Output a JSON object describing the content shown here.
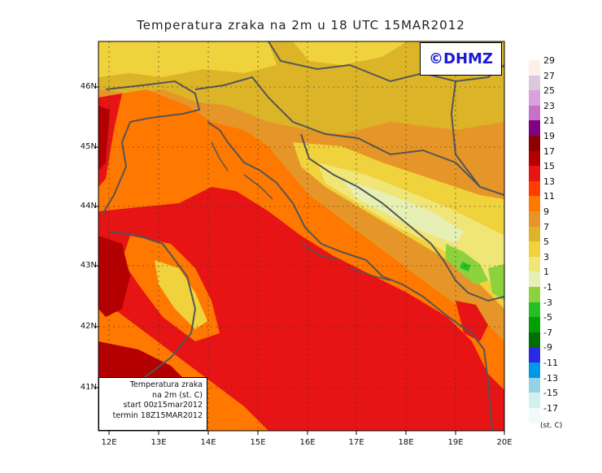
{
  "title": "Temperatura zraka na 2m u 18 UTC 15MAR2012",
  "logo": "©DHMZ",
  "lat_labels": [
    "46N",
    "45N",
    "44N",
    "43N",
    "42N",
    "41N"
  ],
  "lon_labels": [
    "12E",
    "13E",
    "14E",
    "15E",
    "16E",
    "17E",
    "18E",
    "19E",
    "20E"
  ],
  "info": {
    "line1": "Temperatura zraka",
    "line2": "na 2m (st. C)",
    "line3": "start 00z15mar2012",
    "line4": "termin 18Z15MAR2012"
  },
  "legend": {
    "levels": [
      "29",
      "27",
      "25",
      "23",
      "21",
      "19",
      "17",
      "15",
      "13",
      "11",
      "9",
      "7",
      "5",
      "3",
      "1",
      "-1",
      "-3",
      "-5",
      "-7",
      "-9",
      "-11",
      "-13",
      "-15",
      "-17"
    ],
    "colors": [
      "#fdf0e6",
      "#dcc8dc",
      "#dca0dc",
      "#c870c8",
      "#820082",
      "#8c0000",
      "#b40000",
      "#e61414",
      "#ff3c00",
      "#ff7800",
      "#e69628",
      "#dcb428",
      "#f0d23c",
      "#f0e678",
      "#e6f0b4",
      "#8cd23c",
      "#28be28",
      "#00a000",
      "#006e00",
      "#2828e6",
      "#0096e6",
      "#96d2e6",
      "#d2f0f0",
      "#f0fafa"
    ],
    "unit": "(st. C)"
  }
}
